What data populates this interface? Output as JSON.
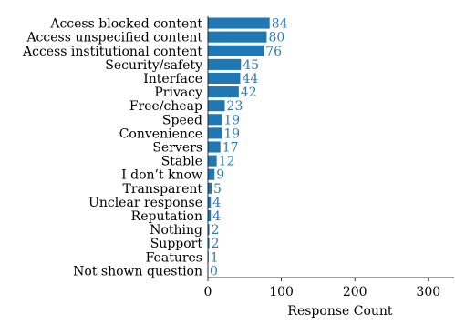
{
  "chart_data": {
    "type": "bar",
    "orientation": "horizontal",
    "categories": [
      "Access blocked content",
      "Access unspecified content",
      "Access institutional content",
      "Security/safety",
      "Interface",
      "Privacy",
      "Free/cheap",
      "Speed",
      "Convenience",
      "Servers",
      "Stable",
      "I don’t know",
      "Transparent",
      "Unclear response",
      "Reputation",
      "Nothing",
      "Support",
      "Features",
      "Not shown question"
    ],
    "values": [
      84,
      80,
      76,
      45,
      44,
      42,
      23,
      19,
      19,
      17,
      12,
      9,
      5,
      4,
      4,
      2,
      2,
      1,
      0
    ],
    "xlabel": "Response Count",
    "ylabel": "",
    "xlim": [
      0,
      335
    ],
    "xticks": [
      0,
      100,
      200,
      300
    ],
    "grid": false,
    "colors": {
      "bar": "#1f77b4",
      "value_label": "#2b7bba"
    }
  }
}
